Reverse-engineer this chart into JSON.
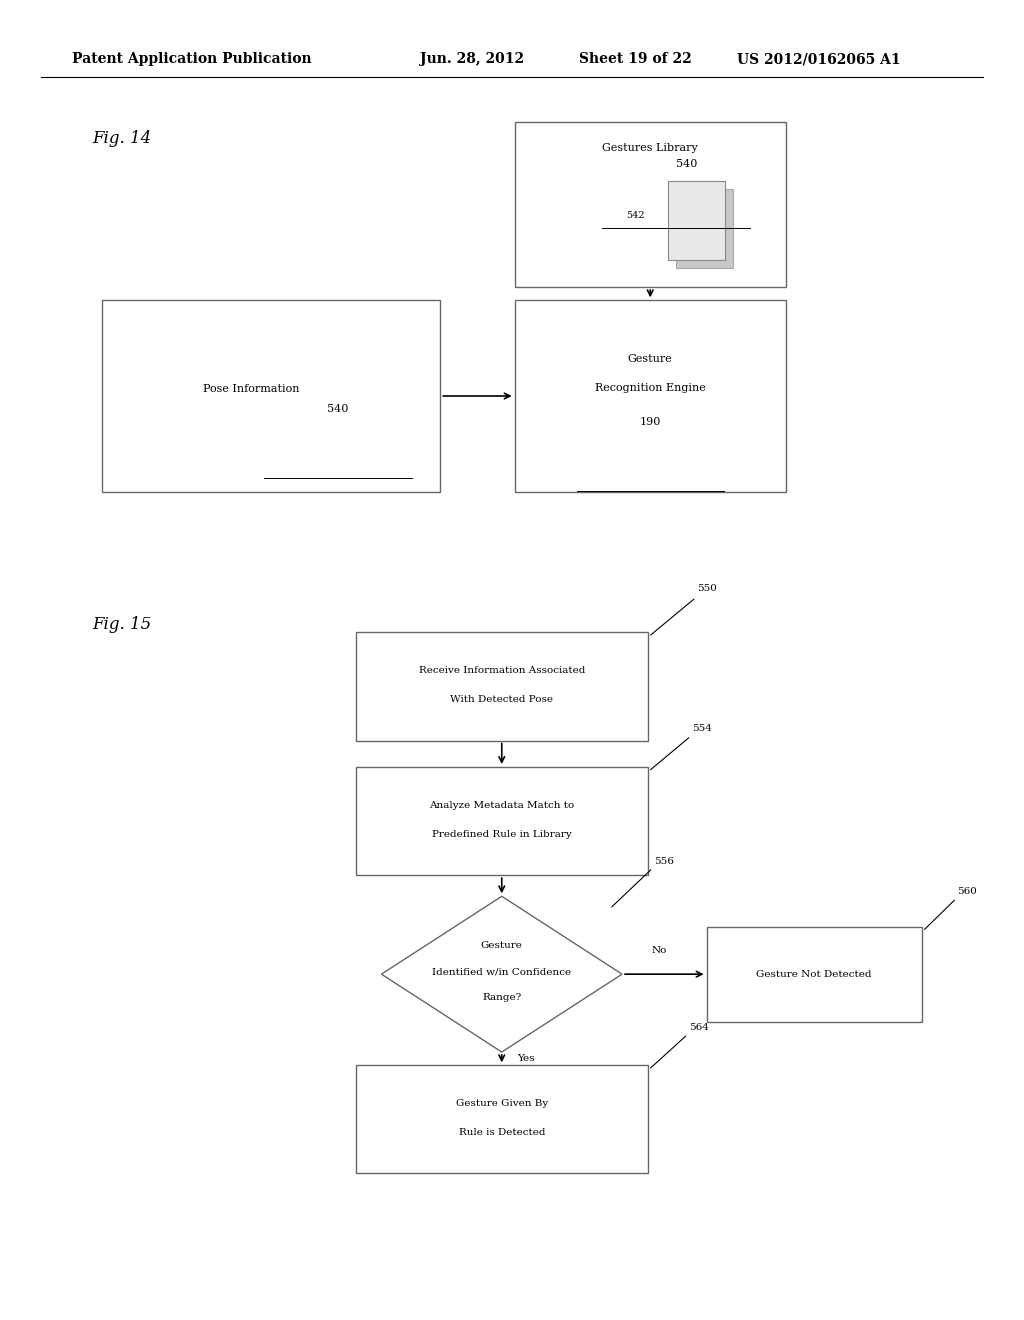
{
  "bg_color": "#ffffff",
  "header_text": "Patent Application Publication",
  "header_date": "Jun. 28, 2012",
  "header_sheet": "Sheet 19 of 22",
  "header_patent": "US 2012/0162065 A1",
  "fig14_label": "Fig. 14",
  "fig15_label": "Fig. 15",
  "text_color": "#000000",
  "box_edge_color": "#666666",
  "arrow_color": "#000000",
  "font_size_header": 10,
  "font_size_fig": 11
}
